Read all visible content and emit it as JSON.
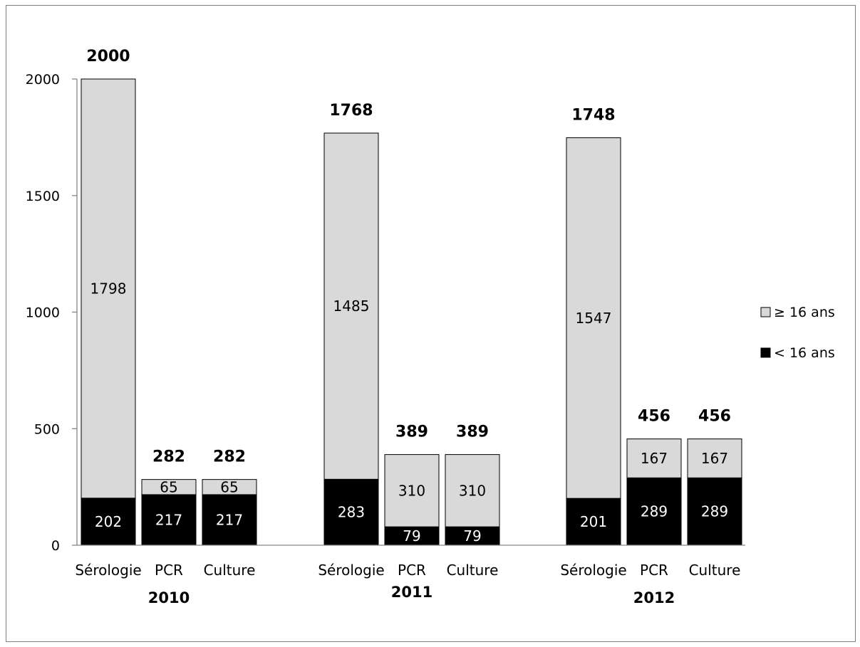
{
  "chart_data": {
    "type": "bar",
    "stacked": true,
    "y_ticks": [
      "0",
      "500",
      "1000",
      "1500",
      "2000"
    ],
    "ylim": [
      0,
      2000
    ],
    "grid": false,
    "legend_position": "right",
    "groups": [
      {
        "label": "2010",
        "bars": [
          {
            "category": "Sérologie",
            "lt16": 202,
            "ge16": 1798,
            "total": 2000,
            "lt16_label": "202",
            "ge16_label": "1798",
            "total_label": "2000"
          },
          {
            "category": "PCR",
            "lt16": 217,
            "ge16": 65,
            "total": 282,
            "lt16_label": "217",
            "ge16_label": "65",
            "total_label": "282"
          },
          {
            "category": "Culture",
            "lt16": 217,
            "ge16": 65,
            "total": 282,
            "lt16_label": "217",
            "ge16_label": "65",
            "total_label": "282"
          }
        ]
      },
      {
        "label": "2011",
        "bars": [
          {
            "category": "Sérologie",
            "lt16": 283,
            "ge16": 1485,
            "total": 1768,
            "lt16_label": "283",
            "ge16_label": "1485",
            "total_label": "1768"
          },
          {
            "category": "PCR",
            "lt16": 79,
            "ge16": 310,
            "total": 389,
            "lt16_label": "79",
            "ge16_label": "310",
            "total_label": "389"
          },
          {
            "category": "Culture",
            "lt16": 79,
            "ge16": 310,
            "total": 389,
            "lt16_label": "79",
            "ge16_label": "310",
            "total_label": "389"
          }
        ]
      },
      {
        "label": "2012",
        "bars": [
          {
            "category": "Sérologie",
            "lt16": 201,
            "ge16": 1547,
            "total": 1748,
            "lt16_label": "201",
            "ge16_label": "1547",
            "total_label": "1748"
          },
          {
            "category": "PCR",
            "lt16": 289,
            "ge16": 167,
            "total": 456,
            "lt16_label": "289",
            "ge16_label": "167",
            "total_label": "456"
          },
          {
            "category": "Culture",
            "lt16": 289,
            "ge16": 167,
            "total": 456,
            "lt16_label": "289",
            "ge16_label": "167",
            "total_label": "456"
          }
        ]
      }
    ],
    "series": [
      {
        "name": "≥ 16 ans",
        "key": "ge16",
        "color": "#d9d9d9"
      },
      {
        "name": "< 16 ans",
        "key": "lt16",
        "color": "#000000"
      }
    ]
  }
}
